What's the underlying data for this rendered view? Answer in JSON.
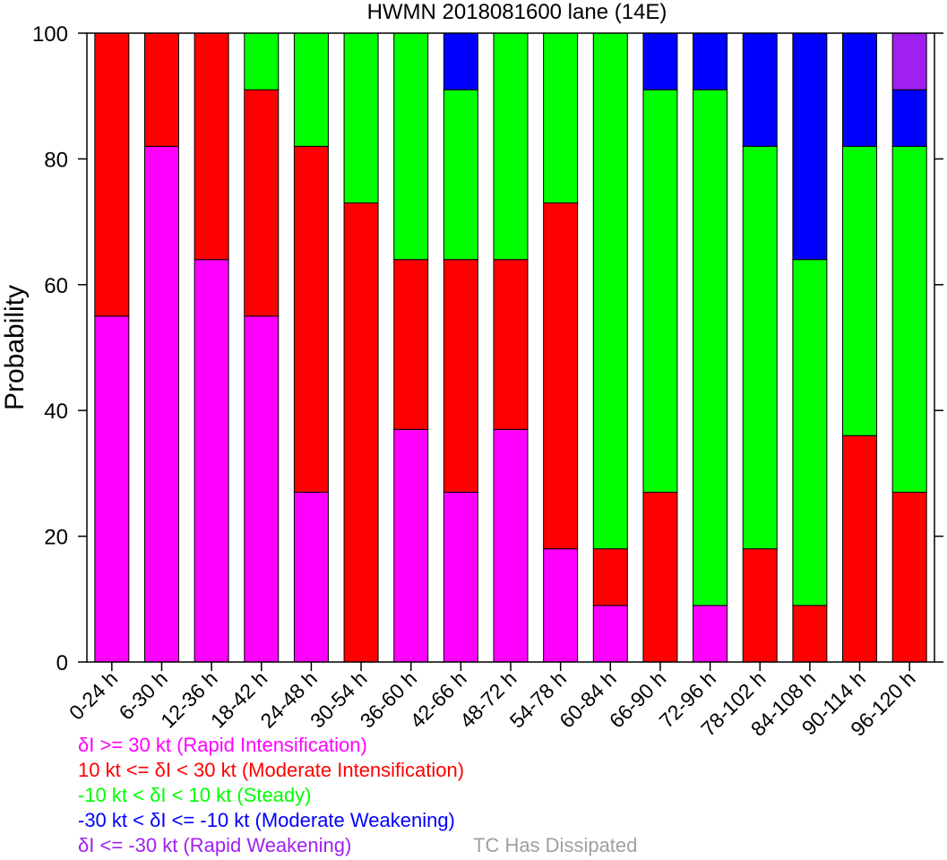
{
  "chart_data": {
    "type": "bar",
    "stacked": true,
    "title": "HWMN 2018081600 lane (14E)",
    "ylabel": "Probability",
    "xlabel": "",
    "ylim": [
      0,
      100
    ],
    "yticks": [
      0,
      20,
      40,
      60,
      80,
      100
    ],
    "grid": false,
    "categories": [
      "0-24 h",
      "6-30 h",
      "12-36 h",
      "18-42 h",
      "24-48 h",
      "30-54 h",
      "36-60 h",
      "42-66 h",
      "48-72 h",
      "54-78 h",
      "60-84 h",
      "66-90 h",
      "72-96 h",
      "78-102 h",
      "84-108 h",
      "90-114 h",
      "96-120 h"
    ],
    "series": [
      {
        "name": "δI >= 30 kt (Rapid Intensification)",
        "color": "#ff00ff",
        "values": [
          55,
          82,
          64,
          55,
          27,
          0,
          37,
          27,
          37,
          18,
          9,
          0,
          9,
          0,
          0,
          0,
          0
        ]
      },
      {
        "name": "10 kt <= δI < 30 kt (Moderate Intensification)",
        "color": "#ff0000",
        "values": [
          45,
          18,
          36,
          36,
          55,
          73,
          27,
          37,
          27,
          55,
          9,
          27,
          0,
          18,
          9,
          36,
          27
        ]
      },
      {
        "name": "-10 kt < δI < 10 kt (Steady)",
        "color": "#00ff00",
        "values": [
          0,
          0,
          0,
          9,
          18,
          27,
          36,
          27,
          36,
          27,
          82,
          64,
          82,
          64,
          55,
          46,
          55
        ]
      },
      {
        "name": "-30 kt < δI <= -10 kt (Moderate Weakening)",
        "color": "#0000ff",
        "values": [
          0,
          0,
          0,
          0,
          0,
          0,
          0,
          9,
          0,
          0,
          0,
          9,
          9,
          18,
          36,
          18,
          9
        ]
      },
      {
        "name": "δI <= -30 kt (Rapid Weakening)",
        "color": "#a020f0",
        "values": [
          0,
          0,
          0,
          0,
          0,
          0,
          0,
          0,
          0,
          0,
          0,
          0,
          0,
          0,
          0,
          0,
          9
        ]
      },
      {
        "name": "TC Has Dissipated",
        "color": "#a0a0a0",
        "values": [
          0,
          0,
          0,
          0,
          0,
          0,
          0,
          0,
          0,
          0,
          0,
          0,
          0,
          0,
          0,
          0,
          0
        ]
      }
    ]
  }
}
